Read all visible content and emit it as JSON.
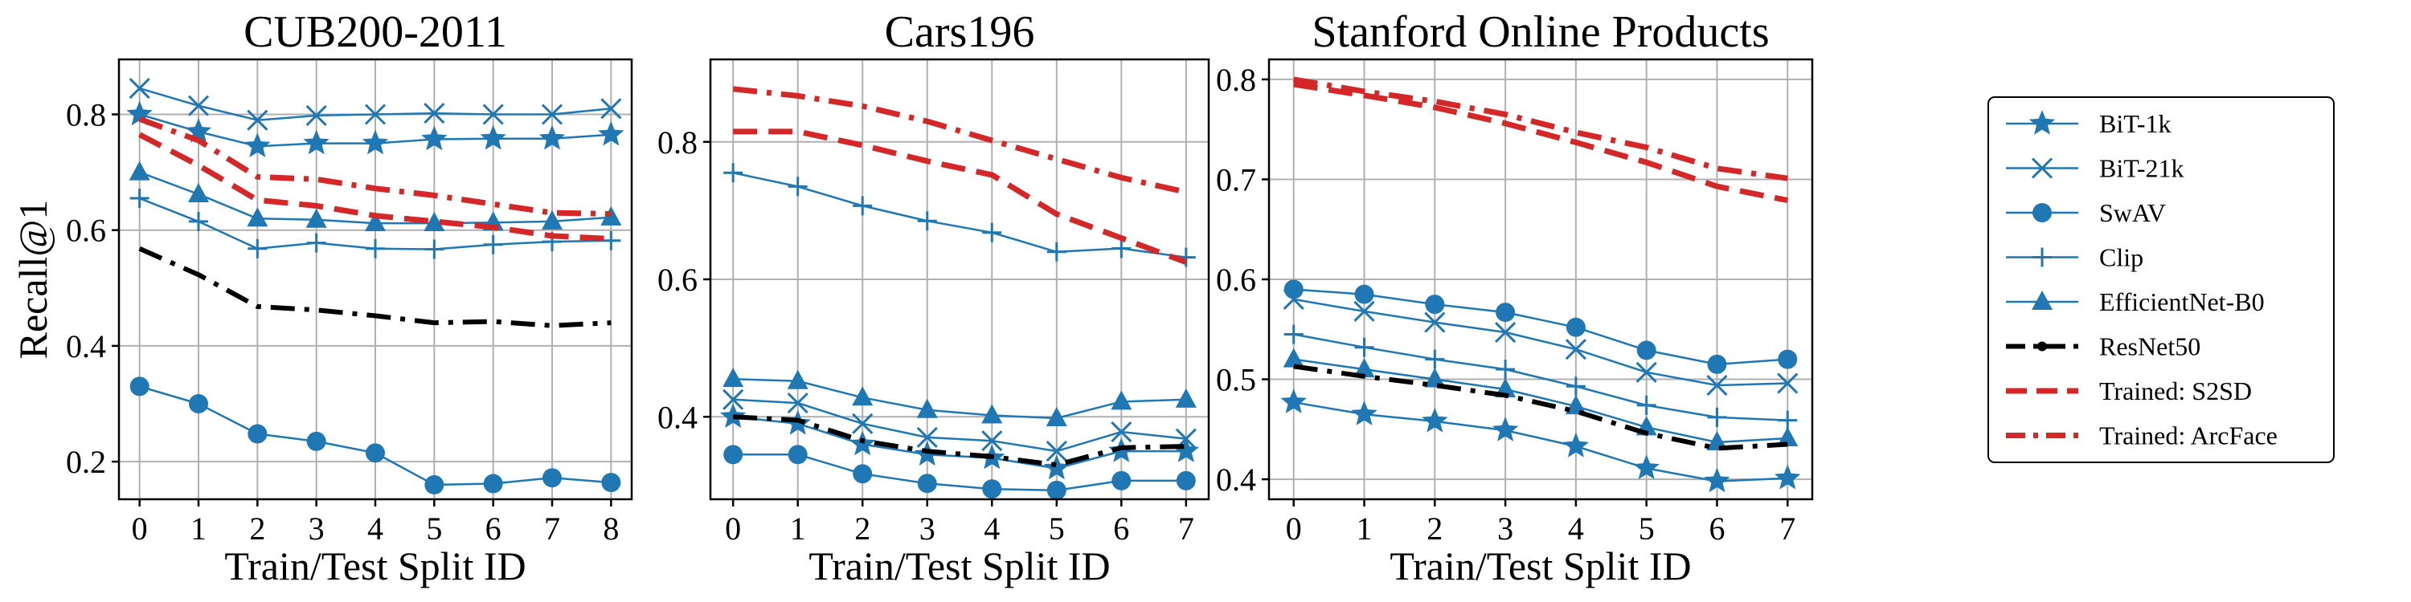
{
  "chart_data": [
    {
      "type": "line",
      "title": "CUB200-2011",
      "xlabel": "Train/Test Split ID",
      "ylabel": "Recall@1",
      "x": [
        0,
        1,
        2,
        3,
        4,
        5,
        6,
        7,
        8
      ],
      "xlim": [
        -0.35,
        8.35
      ],
      "ylim": [
        0.135,
        0.895
      ],
      "yticks": [
        0.2,
        0.4,
        0.6,
        0.8
      ],
      "yticklabels": [
        "0.2",
        "0.4",
        "0.6",
        "0.8"
      ],
      "series": [
        {
          "name": "BiT-1k",
          "values": [
            0.8,
            0.77,
            0.745,
            0.75,
            0.75,
            0.757,
            0.758,
            0.758,
            0.765
          ]
        },
        {
          "name": "BiT-21k",
          "values": [
            0.845,
            0.815,
            0.79,
            0.798,
            0.8,
            0.802,
            0.8,
            0.8,
            0.81
          ]
        },
        {
          "name": "SwAV",
          "values": [
            0.33,
            0.3,
            0.248,
            0.235,
            0.215,
            0.16,
            0.162,
            0.172,
            0.164
          ]
        },
        {
          "name": "Clip",
          "values": [
            0.655,
            0.615,
            0.568,
            0.578,
            0.568,
            0.567,
            0.575,
            0.58,
            0.582
          ]
        },
        {
          "name": "EfficientNet-B0",
          "values": [
            0.7,
            0.662,
            0.62,
            0.618,
            0.612,
            0.612,
            0.613,
            0.615,
            0.622
          ]
        },
        {
          "name": "ResNet50",
          "values": [
            0.568,
            0.523,
            0.468,
            0.462,
            0.452,
            0.44,
            0.442,
            0.435,
            0.44
          ]
        },
        {
          "name": "Trained: S2SD",
          "values": [
            0.765,
            0.712,
            0.652,
            0.642,
            0.625,
            0.615,
            0.605,
            0.59,
            0.585
          ]
        },
        {
          "name": "Trained: ArcFace",
          "values": [
            0.792,
            0.755,
            0.692,
            0.688,
            0.672,
            0.66,
            0.645,
            0.63,
            0.628
          ]
        }
      ]
    },
    {
      "type": "line",
      "title": "Cars196",
      "xlabel": "Train/Test Split ID",
      "ylabel": "",
      "x": [
        0,
        1,
        2,
        3,
        4,
        5,
        6,
        7
      ],
      "xlim": [
        -0.35,
        7.35
      ],
      "ylim": [
        0.28,
        0.92
      ],
      "yticks": [
        0.4,
        0.6,
        0.8
      ],
      "yticklabels": [
        "0.4",
        "0.6",
        "0.8"
      ],
      "series": [
        {
          "name": "BiT-1k",
          "values": [
            0.4,
            0.39,
            0.36,
            0.345,
            0.34,
            0.325,
            0.35,
            0.35
          ]
        },
        {
          "name": "BiT-21k",
          "values": [
            0.425,
            0.42,
            0.39,
            0.37,
            0.365,
            0.35,
            0.378,
            0.368
          ]
        },
        {
          "name": "SwAV",
          "values": [
            0.345,
            0.345,
            0.317,
            0.303,
            0.295,
            0.293,
            0.307,
            0.307
          ]
        },
        {
          "name": "Clip",
          "values": [
            0.755,
            0.735,
            0.707,
            0.685,
            0.668,
            0.64,
            0.645,
            0.632
          ]
        },
        {
          "name": "EfficientNet-B0",
          "values": [
            0.455,
            0.452,
            0.428,
            0.41,
            0.402,
            0.398,
            0.422,
            0.425
          ]
        },
        {
          "name": "ResNet50",
          "values": [
            0.4,
            0.395,
            0.365,
            0.35,
            0.342,
            0.33,
            0.355,
            0.357
          ]
        },
        {
          "name": "Trained: S2SD",
          "values": [
            0.815,
            0.815,
            0.795,
            0.772,
            0.752,
            0.695,
            0.66,
            0.625
          ]
        },
        {
          "name": "Trained: ArcFace",
          "values": [
            0.877,
            0.867,
            0.852,
            0.83,
            0.802,
            0.775,
            0.748,
            0.727
          ]
        }
      ]
    },
    {
      "type": "line",
      "title": "Stanford Online Products",
      "xlabel": "Train/Test Split ID",
      "ylabel": "",
      "x": [
        0,
        1,
        2,
        3,
        4,
        5,
        6,
        7
      ],
      "xlim": [
        -0.35,
        7.35
      ],
      "ylim": [
        0.38,
        0.82
      ],
      "yticks": [
        0.4,
        0.5,
        0.6,
        0.7,
        0.8
      ],
      "yticklabels": [
        "0.4",
        "0.5",
        "0.6",
        "0.7",
        "0.8"
      ],
      "series": [
        {
          "name": "BiT-1k",
          "values": [
            0.477,
            0.465,
            0.458,
            0.449,
            0.433,
            0.411,
            0.398,
            0.401
          ]
        },
        {
          "name": "BiT-21k",
          "values": [
            0.58,
            0.568,
            0.557,
            0.547,
            0.53,
            0.507,
            0.494,
            0.496
          ]
        },
        {
          "name": "SwAV",
          "values": [
            0.59,
            0.585,
            0.575,
            0.567,
            0.552,
            0.529,
            0.515,
            0.52
          ]
        },
        {
          "name": "Clip",
          "values": [
            0.545,
            0.532,
            0.52,
            0.51,
            0.493,
            0.474,
            0.462,
            0.459
          ]
        },
        {
          "name": "EfficientNet-B0",
          "values": [
            0.52,
            0.51,
            0.5,
            0.49,
            0.473,
            0.452,
            0.437,
            0.441
          ]
        },
        {
          "name": "ResNet50",
          "values": [
            0.513,
            0.503,
            0.494,
            0.484,
            0.468,
            0.446,
            0.431,
            0.435
          ]
        },
        {
          "name": "Trained: S2SD",
          "values": [
            0.795,
            0.784,
            0.772,
            0.756,
            0.737,
            0.717,
            0.693,
            0.679
          ]
        },
        {
          "name": "Trained: ArcFace",
          "values": [
            0.8,
            0.788,
            0.778,
            0.765,
            0.747,
            0.732,
            0.711,
            0.701
          ]
        }
      ]
    }
  ],
  "legend": {
    "placement": "right",
    "entries": [
      {
        "name": "BiT-1k",
        "marker": "star",
        "color": "#1f77b4",
        "style": "solid"
      },
      {
        "name": "BiT-21k",
        "marker": "x",
        "color": "#1f77b4",
        "style": "solid"
      },
      {
        "name": "SwAV",
        "marker": "circle",
        "color": "#1f77b4",
        "style": "solid"
      },
      {
        "name": "Clip",
        "marker": "plus",
        "color": "#1f77b4",
        "style": "solid"
      },
      {
        "name": "EfficientNet-B0",
        "marker": "triangle",
        "color": "#1f77b4",
        "style": "solid"
      },
      {
        "name": "ResNet50",
        "marker": "dot",
        "color": "#000000",
        "style": "dashdot"
      },
      {
        "name": "Trained: S2SD",
        "marker": "none",
        "color": "#d62728",
        "style": "dashed"
      },
      {
        "name": "Trained: ArcFace",
        "marker": "none",
        "color": "#d62728",
        "style": "dashdot"
      }
    ]
  }
}
